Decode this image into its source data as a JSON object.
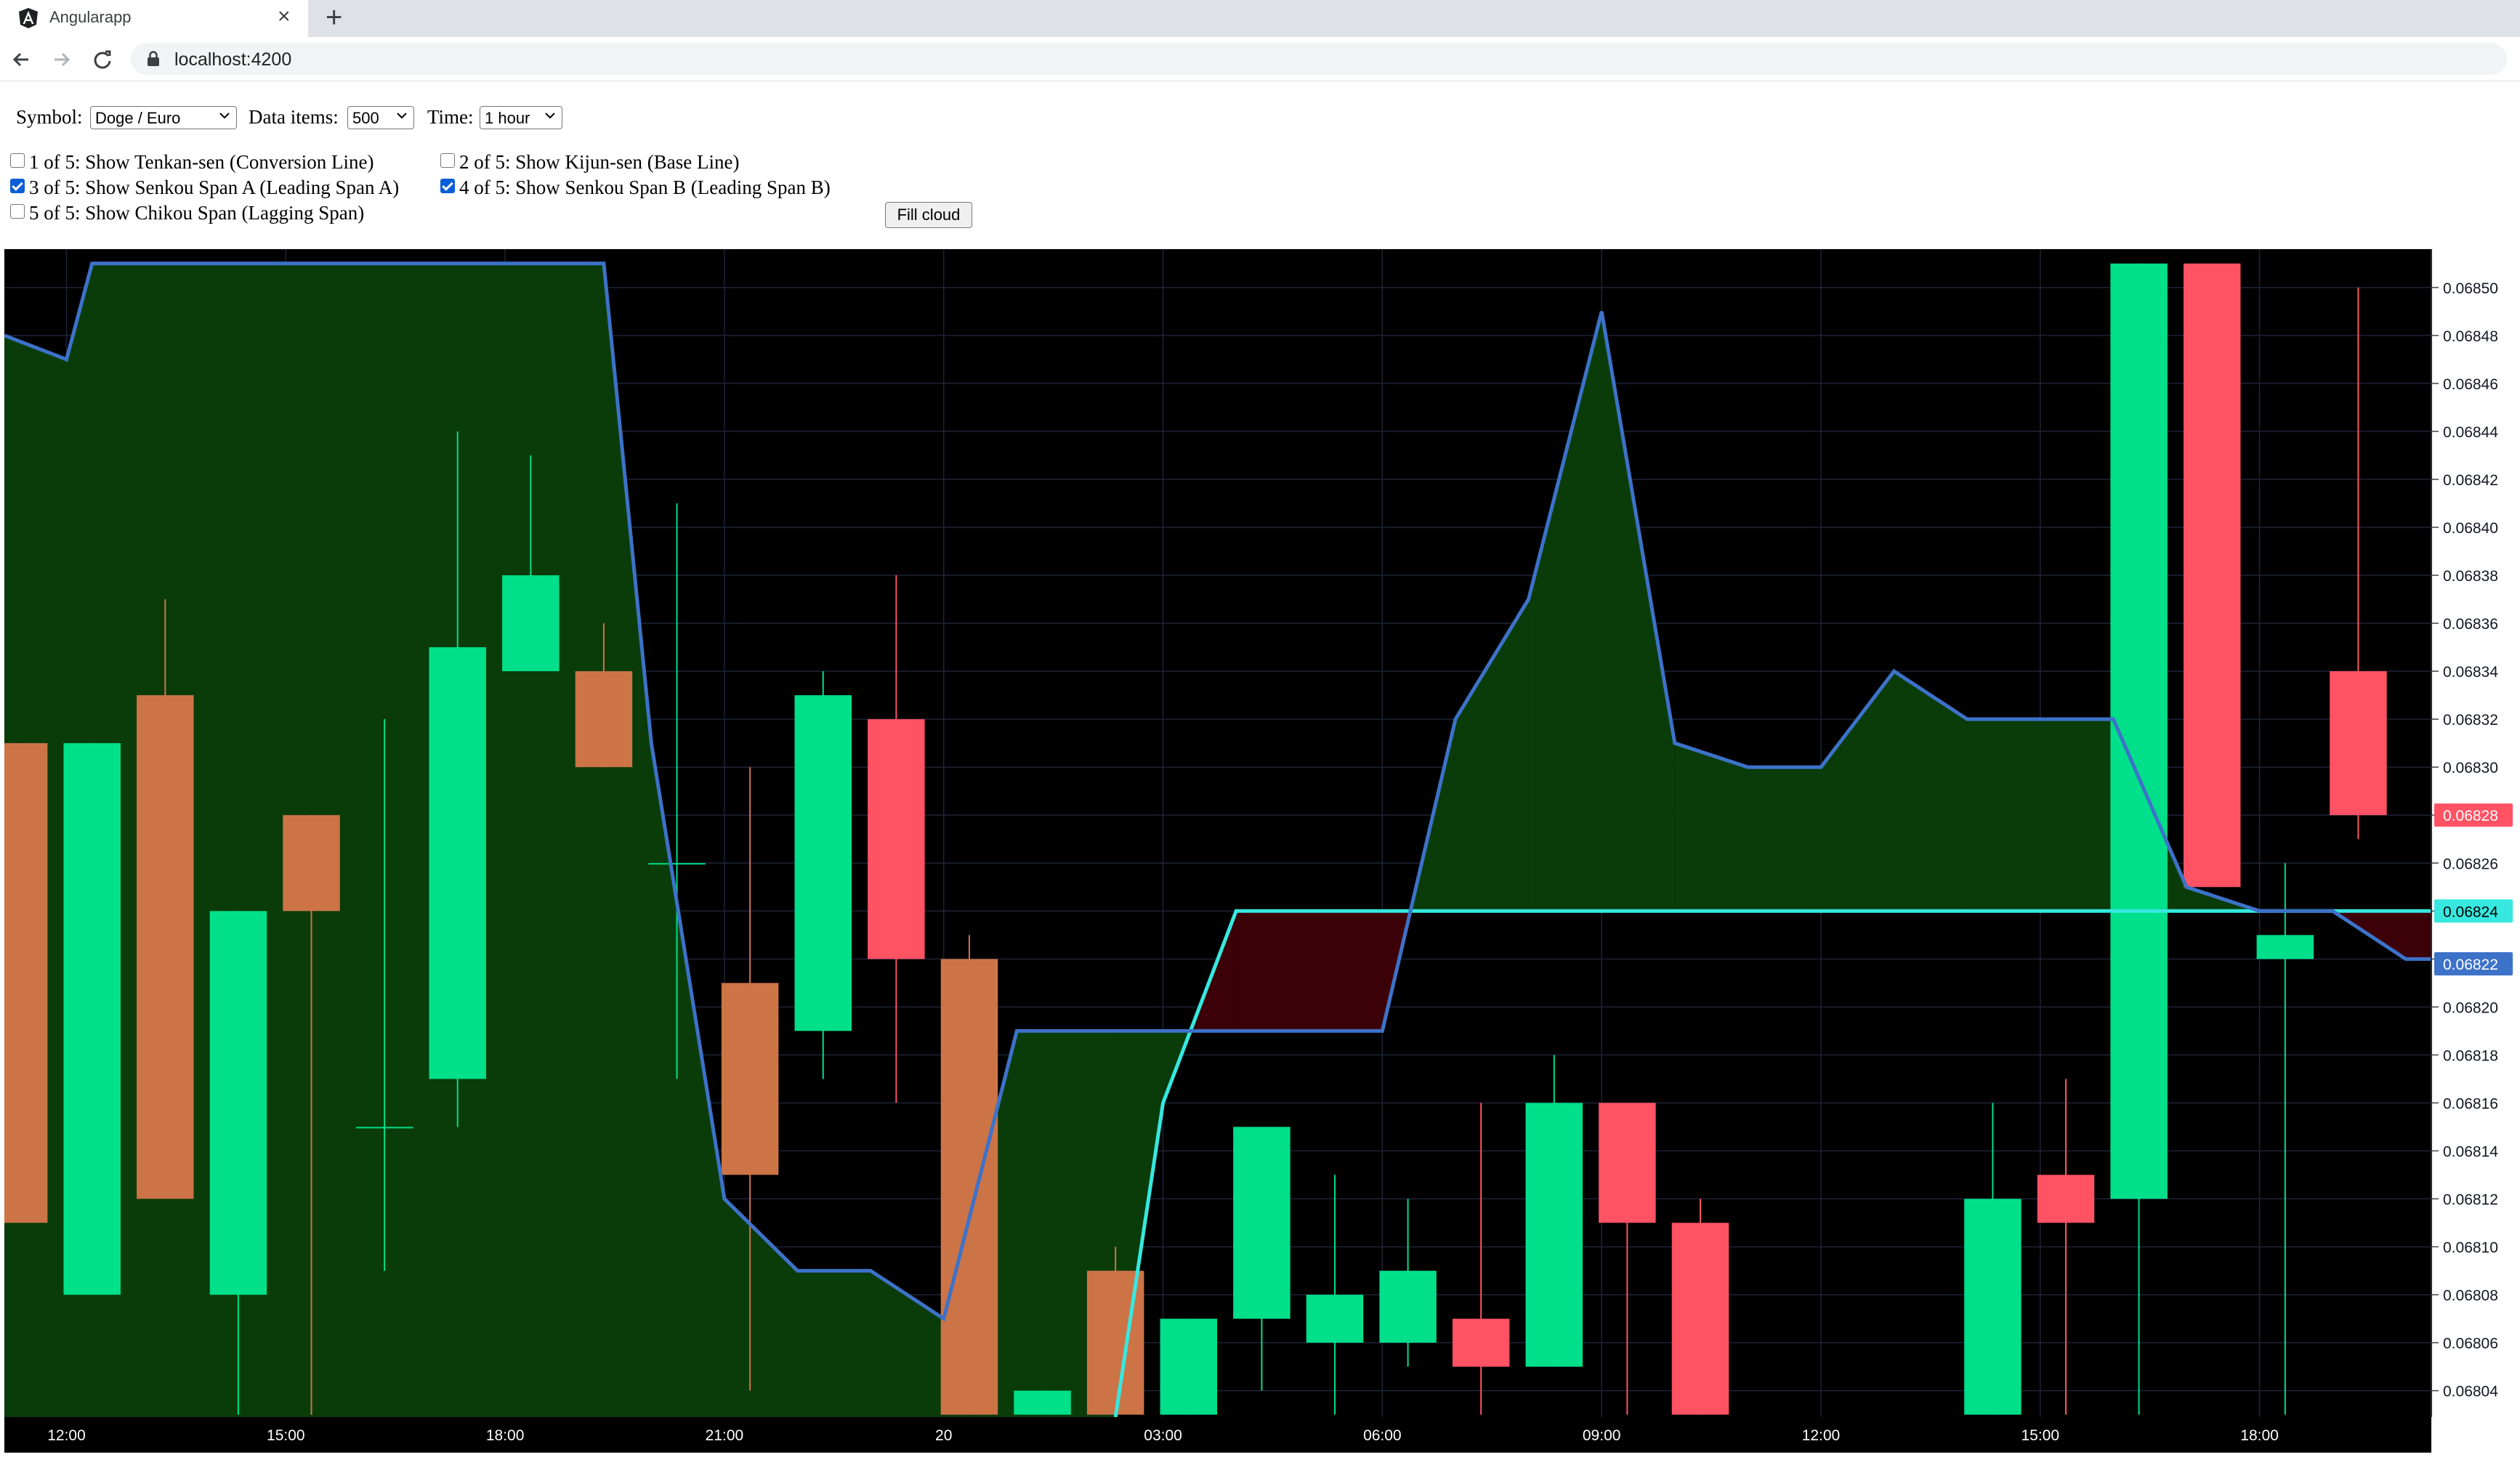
{
  "browser": {
    "tab_title": "Angularapp",
    "url": "localhost:4200"
  },
  "controls": {
    "symbol_label": "Symbol:",
    "symbol_value": "Doge / Euro",
    "items_label": "Data items:",
    "items_value": "500",
    "time_label": "Time:",
    "time_value": "1 hour",
    "fill_cloud_label": "Fill cloud",
    "checkboxes": [
      {
        "label": "1 of 5: Show Tenkan-sen (Conversion Line)",
        "checked": false
      },
      {
        "label": "2 of 5: Show Kijun-sen (Base Line)",
        "checked": false
      },
      {
        "label": "3 of 5: Show Senkou Span A (Leading Span A)",
        "checked": true
      },
      {
        "label": "4 of 5: Show Senkou Span B (Leading Span B)",
        "checked": true
      },
      {
        "label": "5 of 5: Show Chikou Span (Lagging Span)",
        "checked": false
      }
    ]
  },
  "chart_data": {
    "type": "candlestick",
    "colors": {
      "background": "#000000",
      "up": "#00e08a",
      "down": "#ff5263",
      "lagging": "#cd7447",
      "span_a": "#3d72c9",
      "span_b": "#36e8e0",
      "cloud_bull": "#0a3c0a",
      "cloud_bear": "#3c0008",
      "grid": "#1e2438"
    },
    "x_ticks": [
      "12:00",
      "15:00",
      "18:00",
      "21:00",
      "20",
      "03:00",
      "06:00",
      "09:00",
      "12:00",
      "15:00",
      "18:00"
    ],
    "y_ticks": [
      "0.06850",
      "0.06848",
      "0.06846",
      "0.06844",
      "0.06842",
      "0.06840",
      "0.06838",
      "0.06836",
      "0.06834",
      "0.06832",
      "0.06830",
      "0.06828",
      "0.06826",
      "0.06824",
      "0.06822",
      "0.06820",
      "0.06818",
      "0.06816",
      "0.06814",
      "0.06812",
      "0.06810",
      "0.06808",
      "0.06806",
      "0.06804"
    ],
    "y_range": [
      0.068029,
      0.068516
    ],
    "x_range": [
      -0.2,
      33
    ],
    "price_labels": [
      {
        "text": "0.06828",
        "value": 0.06828,
        "color": "#ff5263"
      },
      {
        "text": "0.06824",
        "value": 0.06824,
        "color": "#36e8e0"
      },
      {
        "text": "0.06822",
        "value": 0.068218,
        "color": "#3d72c9"
      }
    ],
    "candles": [
      {
        "i": 0,
        "o": 0.06811,
        "c": 0.06831,
        "h": 0.06831,
        "l": 0.06811,
        "col": "lagging"
      },
      {
        "i": 1,
        "o": 0.06808,
        "c": 0.06831,
        "h": 0.06831,
        "l": 0.06808,
        "col": "up"
      },
      {
        "i": 2,
        "o": 0.06833,
        "c": 0.06812,
        "h": 0.06837,
        "l": 0.06812,
        "col": "lagging"
      },
      {
        "i": 3,
        "o": 0.06808,
        "c": 0.06824,
        "h": 0.06824,
        "l": 0.06803,
        "col": "up"
      },
      {
        "i": 4,
        "o": 0.06824,
        "c": 0.06828,
        "h": 0.06828,
        "l": 0.06803,
        "col": "lagging"
      },
      {
        "i": 5,
        "o": 0.06815,
        "c": 0.06815,
        "h": 0.06832,
        "l": 0.06809,
        "col": "up"
      },
      {
        "i": 6,
        "o": 0.06817,
        "c": 0.06835,
        "h": 0.06844,
        "l": 0.06815,
        "col": "up"
      },
      {
        "i": 7,
        "o": 0.06834,
        "c": 0.06838,
        "h": 0.06843,
        "l": 0.06834,
        "col": "up"
      },
      {
        "i": 8,
        "o": 0.06834,
        "c": 0.0683,
        "h": 0.06836,
        "l": 0.0683,
        "col": "lagging"
      },
      {
        "i": 9,
        "o": 0.06826,
        "c": 0.06826,
        "h": 0.06841,
        "l": 0.06817,
        "col": "up"
      },
      {
        "i": 10,
        "o": 0.06821,
        "c": 0.06813,
        "h": 0.0683,
        "l": 0.06804,
        "col": "lagging"
      },
      {
        "i": 11,
        "o": 0.06819,
        "c": 0.06833,
        "h": 0.06834,
        "l": 0.06817,
        "col": "up"
      },
      {
        "i": 12,
        "o": 0.06832,
        "c": 0.06822,
        "h": 0.06838,
        "l": 0.06816,
        "col": "down"
      },
      {
        "i": 13,
        "o": 0.06822,
        "c": 0.06803,
        "h": 0.06823,
        "l": 0.06803,
        "col": "lagging"
      },
      {
        "i": 14,
        "o": 0.06803,
        "c": 0.06804,
        "h": 0.06804,
        "l": 0.06803,
        "col": "up"
      },
      {
        "i": 15,
        "o": 0.06803,
        "c": 0.06809,
        "h": 0.0681,
        "l": 0.06803,
        "col": "lagging"
      },
      {
        "i": 16,
        "o": 0.06803,
        "c": 0.06807,
        "h": 0.06807,
        "l": 0.06803,
        "col": "up"
      },
      {
        "i": 17,
        "o": 0.06807,
        "c": 0.06815,
        "h": 0.06815,
        "l": 0.06804,
        "col": "up"
      },
      {
        "i": 18,
        "o": 0.06806,
        "c": 0.06808,
        "h": 0.06813,
        "l": 0.06803,
        "col": "up"
      },
      {
        "i": 19,
        "o": 0.06806,
        "c": 0.06809,
        "h": 0.06812,
        "l": 0.06805,
        "col": "up"
      },
      {
        "i": 20,
        "o": 0.06807,
        "c": 0.06805,
        "h": 0.06816,
        "l": 0.06803,
        "col": "down"
      },
      {
        "i": 21,
        "o": 0.06805,
        "c": 0.06816,
        "h": 0.06818,
        "l": 0.06805,
        "col": "up"
      },
      {
        "i": 22,
        "o": 0.06816,
        "c": 0.06811,
        "h": 0.06816,
        "l": 0.06803,
        "col": "down"
      },
      {
        "i": 23,
        "o": 0.06811,
        "c": 0.06803,
        "h": 0.06812,
        "l": 0.06803,
        "col": "down"
      },
      {
        "i": 27,
        "o": 0.06803,
        "c": 0.06812,
        "h": 0.06816,
        "l": 0.06803,
        "col": "up"
      },
      {
        "i": 28,
        "o": 0.06813,
        "c": 0.06811,
        "h": 0.06817,
        "l": 0.06803,
        "col": "down"
      },
      {
        "i": 29,
        "o": 0.06812,
        "c": 0.06851,
        "h": 0.06851,
        "l": 0.06803,
        "col": "up"
      },
      {
        "i": 30,
        "o": 0.06851,
        "c": 0.06825,
        "h": 0.06851,
        "l": 0.06825,
        "col": "down"
      },
      {
        "i": 31,
        "o": 0.06822,
        "c": 0.06823,
        "h": 0.06826,
        "l": 0.06803,
        "col": "up"
      },
      {
        "i": 32,
        "o": 0.06834,
        "c": 0.06828,
        "h": 0.0685,
        "l": 0.06827,
        "col": "down"
      }
    ],
    "span_a": [
      [
        -0.2,
        0.06848
      ],
      [
        0.65,
        0.06847
      ],
      [
        1,
        0.06851
      ],
      [
        8,
        0.06851
      ],
      [
        8.65,
        0.06831
      ],
      [
        9.65,
        0.06812
      ],
      [
        10.65,
        0.06809
      ],
      [
        11.65,
        0.06809
      ],
      [
        12.65,
        0.06807
      ],
      [
        13.65,
        0.06819
      ],
      [
        18.65,
        0.06819
      ],
      [
        19.65,
        0.06832
      ],
      [
        20.65,
        0.06837
      ],
      [
        21.65,
        0.06849
      ],
      [
        22.65,
        0.06831
      ],
      [
        23.65,
        0.0683
      ],
      [
        24.65,
        0.0683
      ],
      [
        25.65,
        0.06834
      ],
      [
        26.65,
        0.06832
      ],
      [
        27.65,
        0.06832
      ],
      [
        28.65,
        0.06832
      ],
      [
        29.65,
        0.06825
      ],
      [
        30.65,
        0.06824
      ],
      [
        31.65,
        0.06824
      ],
      [
        32.65,
        0.06822
      ],
      [
        33,
        0.06822
      ]
    ],
    "span_b": [
      [
        15,
        0.068029
      ],
      [
        15.65,
        0.06816
      ],
      [
        16.65,
        0.06824
      ],
      [
        33,
        0.06824
      ]
    ]
  }
}
